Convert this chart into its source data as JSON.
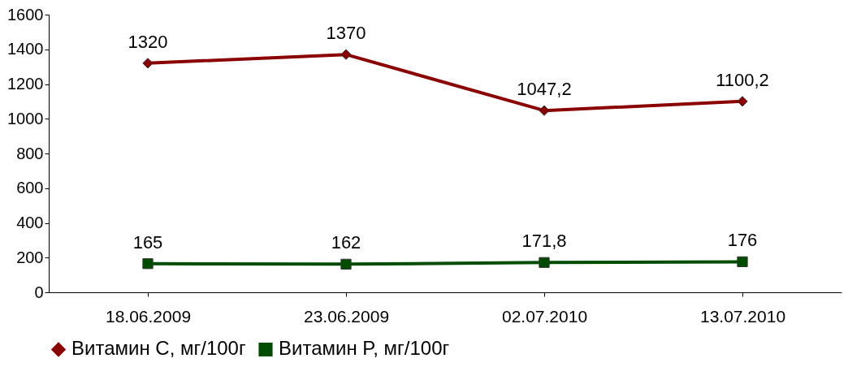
{
  "chart_data": {
    "type": "line",
    "categories": [
      "18.06.2009",
      "23.06.2009",
      "02.07.2010",
      "13.07.2010"
    ],
    "series": [
      {
        "name": "Витамин C, мг/100г",
        "color": "#8b0000",
        "marker": "diamond",
        "values": [
          1320,
          1370,
          1047.2,
          1100.2
        ],
        "value_labels": [
          "1320",
          "1370",
          "1047,2",
          "1100,2"
        ]
      },
      {
        "name": "Витамин P, мг/100г",
        "color": "#004d00",
        "marker": "square",
        "values": [
          165,
          162,
          171.8,
          176
        ],
        "value_labels": [
          "165",
          "162",
          "171,8",
          "176"
        ]
      }
    ],
    "ylim": [
      0,
      1600
    ],
    "yticks": [
      0,
      200,
      400,
      600,
      800,
      1000,
      1200,
      1400,
      1600
    ],
    "grid": false,
    "legend": "bottom",
    "line_style": "solid"
  }
}
